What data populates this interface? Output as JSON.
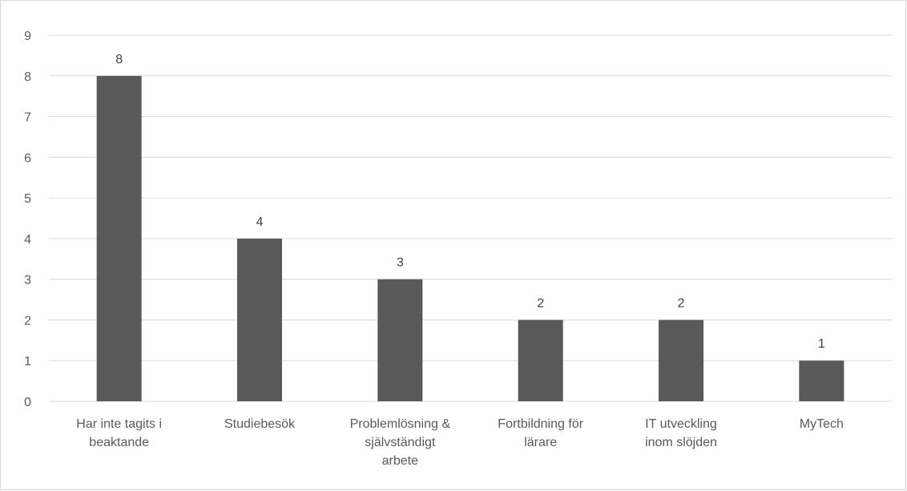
{
  "chart_data": {
    "type": "bar",
    "categories": [
      [
        "Har inte tagits i",
        "beaktande"
      ],
      [
        "Studiebesök"
      ],
      [
        "Problemlösning &",
        "självständigt",
        "arbete"
      ],
      [
        "Fortbildning för",
        "lärare"
      ],
      [
        "IT utveckling",
        "inom slöjden"
      ],
      [
        "MyTech"
      ]
    ],
    "values": [
      8,
      4,
      3,
      2,
      2,
      1
    ],
    "data_labels": [
      "8",
      "4",
      "3",
      "2",
      "2",
      "1"
    ],
    "yticks": [
      "0",
      "1",
      "2",
      "3",
      "4",
      "5",
      "6",
      "7",
      "8",
      "9"
    ],
    "ylim": [
      0,
      9
    ],
    "title": "",
    "xlabel": "",
    "ylabel": "",
    "grid": true,
    "legend": "none",
    "bar_color": "#595959",
    "grid_color": "#d9d9d9"
  }
}
